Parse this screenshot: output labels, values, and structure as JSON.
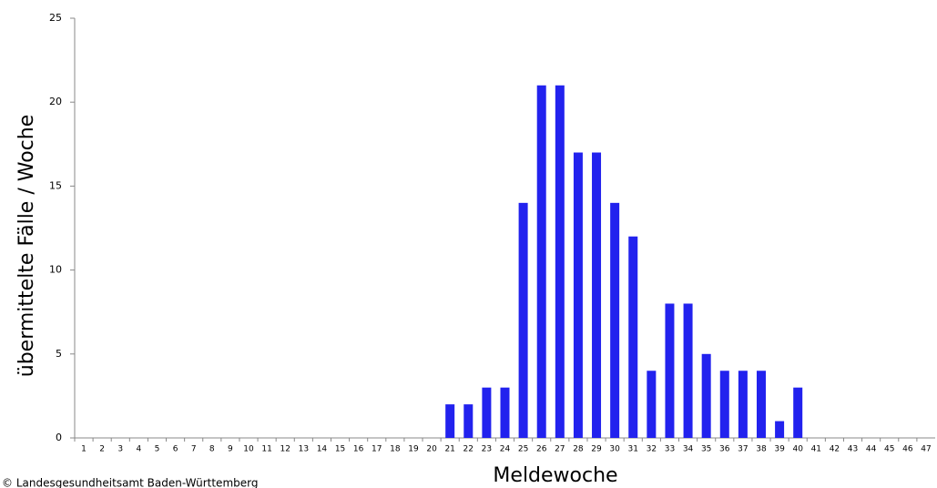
{
  "chart_data": {
    "type": "bar",
    "x_label": "Meldewoche",
    "y_label": "übermittelte Fälle / Woche",
    "credit": "© Landesgesundheitsamt Baden-Württemberg",
    "categories": [
      "1",
      "2",
      "3",
      "4",
      "5",
      "6",
      "7",
      "8",
      "9",
      "10",
      "11",
      "12",
      "13",
      "14",
      "15",
      "16",
      "17",
      "18",
      "19",
      "20",
      "21",
      "22",
      "23",
      "24",
      "25",
      "26",
      "27",
      "28",
      "29",
      "30",
      "31",
      "32",
      "33",
      "34",
      "35",
      "36",
      "37",
      "38",
      "39",
      "40",
      "41",
      "42",
      "43",
      "44",
      "45",
      "46",
      "47"
    ],
    "values": [
      0,
      0,
      0,
      0,
      0,
      0,
      0,
      0,
      0,
      0,
      0,
      0,
      0,
      0,
      0,
      0,
      0,
      0,
      0,
      0,
      2,
      2,
      3,
      3,
      14,
      21,
      21,
      17,
      17,
      14,
      12,
      4,
      8,
      8,
      5,
      4,
      4,
      4,
      1,
      3,
      0,
      0,
      0,
      0,
      0,
      0,
      0
    ],
    "color": "#2222ee",
    "ylim": [
      0,
      25
    ],
    "yticks": [
      0,
      5,
      10,
      15,
      20,
      25
    ]
  }
}
